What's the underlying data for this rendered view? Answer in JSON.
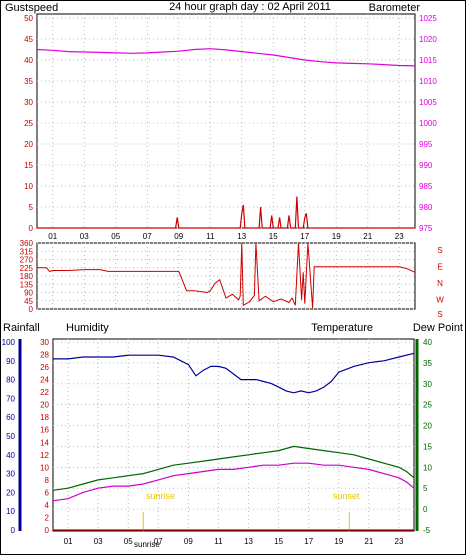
{
  "header": {
    "left_label": "Gustspeed",
    "title": "24 hour graph day : 02 April 2011",
    "right_label": "Barometer"
  },
  "colors": {
    "gust": "#cc0000",
    "barometer": "#e000e0",
    "wind_dir": "#cc0000",
    "rain": "#cc0000",
    "humidity": "#000099",
    "temperature": "#006600",
    "dewpoint": "#cc00cc",
    "sun": "#e6c800",
    "grid": "#bbbbbb",
    "title_blue": "#000099"
  },
  "time_ticks": [
    "01",
    "03",
    "05",
    "07",
    "09",
    "11",
    "13",
    "15",
    "17",
    "19",
    "21",
    "23"
  ],
  "wind_dir_labels": [
    "S",
    "E",
    "N",
    "W",
    "S"
  ],
  "lower_labels": {
    "rainfall": "Rainfall",
    "humidity": "Humidity",
    "temperature": "Temperature",
    "dewpoint": "Dew Point",
    "sunrise": "sunrise",
    "sunset": "sunset"
  },
  "chart_data": [
    {
      "type": "line",
      "panel": "gust-barometer",
      "x_unit": "hour",
      "xlim": [
        0,
        24
      ],
      "left_axis": {
        "label": "Gustspeed",
        "ylim": [
          0,
          50
        ],
        "ticks": [
          0,
          5,
          10,
          15,
          20,
          25,
          30,
          35,
          40,
          45,
          50
        ]
      },
      "right_axis": {
        "label": "Barometer",
        "ylim": [
          975,
          1025
        ],
        "ticks": [
          975,
          980,
          985,
          990,
          995,
          1000,
          1005,
          1010,
          1015,
          1020,
          1025
        ]
      },
      "series": [
        {
          "name": "Barometer",
          "axis": "right",
          "x": [
            0,
            1,
            2,
            3,
            4,
            5,
            6,
            7,
            8,
            9,
            10,
            11,
            12,
            13,
            14,
            15,
            16,
            17,
            18,
            19,
            20,
            21,
            22,
            23,
            24
          ],
          "y": [
            1017.5,
            1017.3,
            1017.0,
            1016.9,
            1016.8,
            1016.7,
            1016.6,
            1016.7,
            1016.9,
            1017.1,
            1017.5,
            1017.7,
            1017.4,
            1017.0,
            1016.6,
            1016.2,
            1015.6,
            1015.0,
            1014.6,
            1014.3,
            1014.2,
            1014.1,
            1013.9,
            1013.7,
            1013.6
          ]
        },
        {
          "name": "Gustspeed",
          "axis": "left",
          "x": [
            0,
            8.8,
            8.9,
            9.0,
            12.9,
            13.0,
            13.1,
            13.2,
            14.1,
            14.2,
            14.3,
            14.8,
            14.9,
            15.0,
            15.3,
            15.4,
            15.5,
            15.9,
            16.0,
            16.1,
            16.4,
            16.5,
            16.6,
            16.9,
            17.0,
            17.1,
            17.2,
            24
          ],
          "y": [
            0,
            0,
            2.5,
            0,
            0,
            3.5,
            5.5,
            0,
            0,
            5,
            0,
            0,
            3,
            0,
            0,
            2.5,
            0,
            0,
            3,
            0,
            0,
            7.5,
            0,
            0,
            2.5,
            3.5,
            0,
            0
          ]
        }
      ]
    },
    {
      "type": "line",
      "panel": "wind-direction",
      "x_unit": "hour",
      "xlim": [
        0,
        24
      ],
      "ylim": [
        0,
        360
      ],
      "ticks": [
        0,
        45,
        90,
        135,
        180,
        225,
        270,
        315,
        360
      ],
      "series": [
        {
          "name": "Wind Direction",
          "x": [
            0,
            0.6,
            0.8,
            1,
            2,
            3,
            4,
            4.5,
            5,
            6,
            7,
            7.5,
            8,
            9,
            9.5,
            10,
            10.8,
            11,
            11.3,
            11.6,
            12,
            12.4,
            12.8,
            12.9,
            13.0,
            13.1,
            13.5,
            13.8,
            13.9,
            14.1,
            14.5,
            15,
            15.5,
            16,
            16.2,
            16.4,
            16.6,
            16.8,
            16.9,
            17.0,
            17.2,
            17.5,
            17.6,
            17.8,
            18,
            19,
            20,
            21,
            22,
            22.5,
            23,
            23.5,
            24
          ],
          "y": [
            225,
            225,
            205,
            210,
            210,
            215,
            215,
            205,
            205,
            205,
            205,
            205,
            205,
            205,
            100,
            100,
            90,
            100,
            140,
            160,
            60,
            80,
            50,
            70,
            360,
            20,
            40,
            75,
            360,
            45,
            70,
            40,
            55,
            35,
            60,
            20,
            360,
            50,
            200,
            30,
            360,
            5,
            230,
            230,
            230,
            230,
            230,
            230,
            230,
            230,
            230,
            220,
            200
          ]
        }
      ]
    },
    {
      "type": "line",
      "panel": "temperature-humidity",
      "x_unit": "hour",
      "xlim": [
        0,
        24
      ],
      "axes": [
        {
          "label": "Humidity",
          "ylim": [
            0,
            100
          ],
          "ticks": [
            0,
            10,
            20,
            30,
            40,
            50,
            60,
            70,
            80,
            90,
            100
          ]
        },
        {
          "label": "Rainfall",
          "ylim": [
            0,
            30
          ],
          "ticks": [
            0,
            2,
            4,
            6,
            8,
            10,
            12,
            14,
            16,
            18,
            20,
            22,
            24,
            26,
            28,
            30
          ]
        },
        {
          "label": "Temperature",
          "ylim": [
            -5,
            40
          ],
          "ticks": [
            -5,
            0,
            5,
            10,
            15,
            20,
            25,
            30,
            35,
            40
          ]
        }
      ],
      "series": [
        {
          "name": "Humidity",
          "axis": "Humidity",
          "x": [
            0,
            1,
            2,
            3,
            4,
            5,
            6,
            7,
            8,
            9,
            9.5,
            10,
            10.5,
            11,
            11.5,
            12,
            12.5,
            13,
            13.5,
            14,
            14.5,
            15,
            15.5,
            16,
            16.5,
            17,
            17.5,
            18,
            18.5,
            19,
            20,
            21,
            22,
            23,
            24
          ],
          "y": [
            91,
            91,
            92,
            92,
            92,
            93,
            93,
            93,
            92,
            88,
            82,
            85,
            87,
            87,
            86,
            83,
            80,
            80,
            80,
            79,
            78,
            76,
            74,
            73,
            74,
            73,
            74,
            76,
            79,
            84,
            87,
            89,
            90,
            92,
            94
          ]
        },
        {
          "name": "Temperature",
          "axis": "Temperature",
          "x": [
            0,
            1,
            2,
            3,
            4,
            5,
            6,
            7,
            8,
            9,
            10,
            11,
            12,
            13,
            14,
            15,
            16,
            17,
            18,
            19,
            20,
            21,
            22,
            23,
            23.5,
            24
          ],
          "y": [
            4.5,
            5,
            6,
            7,
            7.5,
            8,
            8.5,
            9.5,
            10.5,
            11,
            11.5,
            12,
            12.5,
            13,
            13.5,
            14,
            15,
            14.5,
            14,
            13.5,
            13,
            12,
            11,
            10,
            9,
            7.5
          ]
        },
        {
          "name": "Dew Point",
          "axis": "Temperature",
          "x": [
            0,
            1,
            2,
            3,
            4,
            5,
            6,
            7,
            8,
            9,
            10,
            11,
            12,
            13,
            14,
            15,
            16,
            17,
            18,
            19,
            20,
            21,
            22,
            23,
            23.5,
            24
          ],
          "y": [
            2,
            2.5,
            4,
            5,
            5.5,
            5.5,
            6,
            7,
            8,
            8.5,
            9,
            9.5,
            9.5,
            10,
            10.5,
            10.5,
            11,
            11,
            10.5,
            10.5,
            10,
            9.5,
            8.5,
            7.5,
            6.5,
            5
          ]
        },
        {
          "name": "Rainfall",
          "axis": "Rainfall",
          "x": [
            0,
            24
          ],
          "y": [
            0,
            0
          ]
        }
      ]
    }
  ]
}
